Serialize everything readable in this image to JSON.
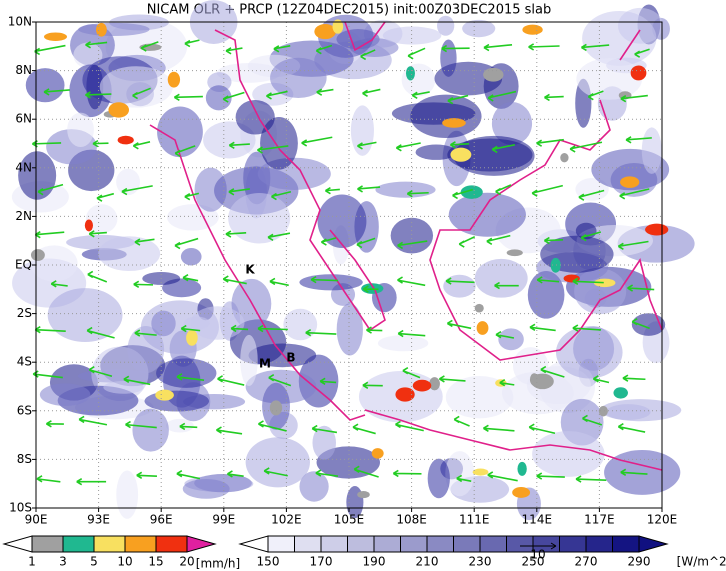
{
  "title": "NICAM OLR + PRCP (12Z04DEC2015) init:00Z03DEC2015 slab",
  "map": {
    "x_ticks": [
      "90E",
      "93E",
      "96E",
      "99E",
      "102E",
      "105E",
      "108E",
      "111E",
      "114E",
      "117E",
      "120E"
    ],
    "y_ticks": [
      "10N",
      "8N",
      "6N",
      "4N",
      "2N",
      "EQ",
      "2S",
      "4S",
      "6S",
      "8S",
      "10S"
    ],
    "places": [
      "K",
      "M",
      "B"
    ]
  },
  "precip_legend": {
    "labels": [
      1,
      3,
      5,
      10,
      15,
      20
    ],
    "unit": "[mm/h]"
  },
  "olr_legend": {
    "labels": [
      150,
      170,
      190,
      210,
      230,
      250,
      270,
      290
    ],
    "unit": "[W/m^2]"
  },
  "vector_reference": "10"
}
